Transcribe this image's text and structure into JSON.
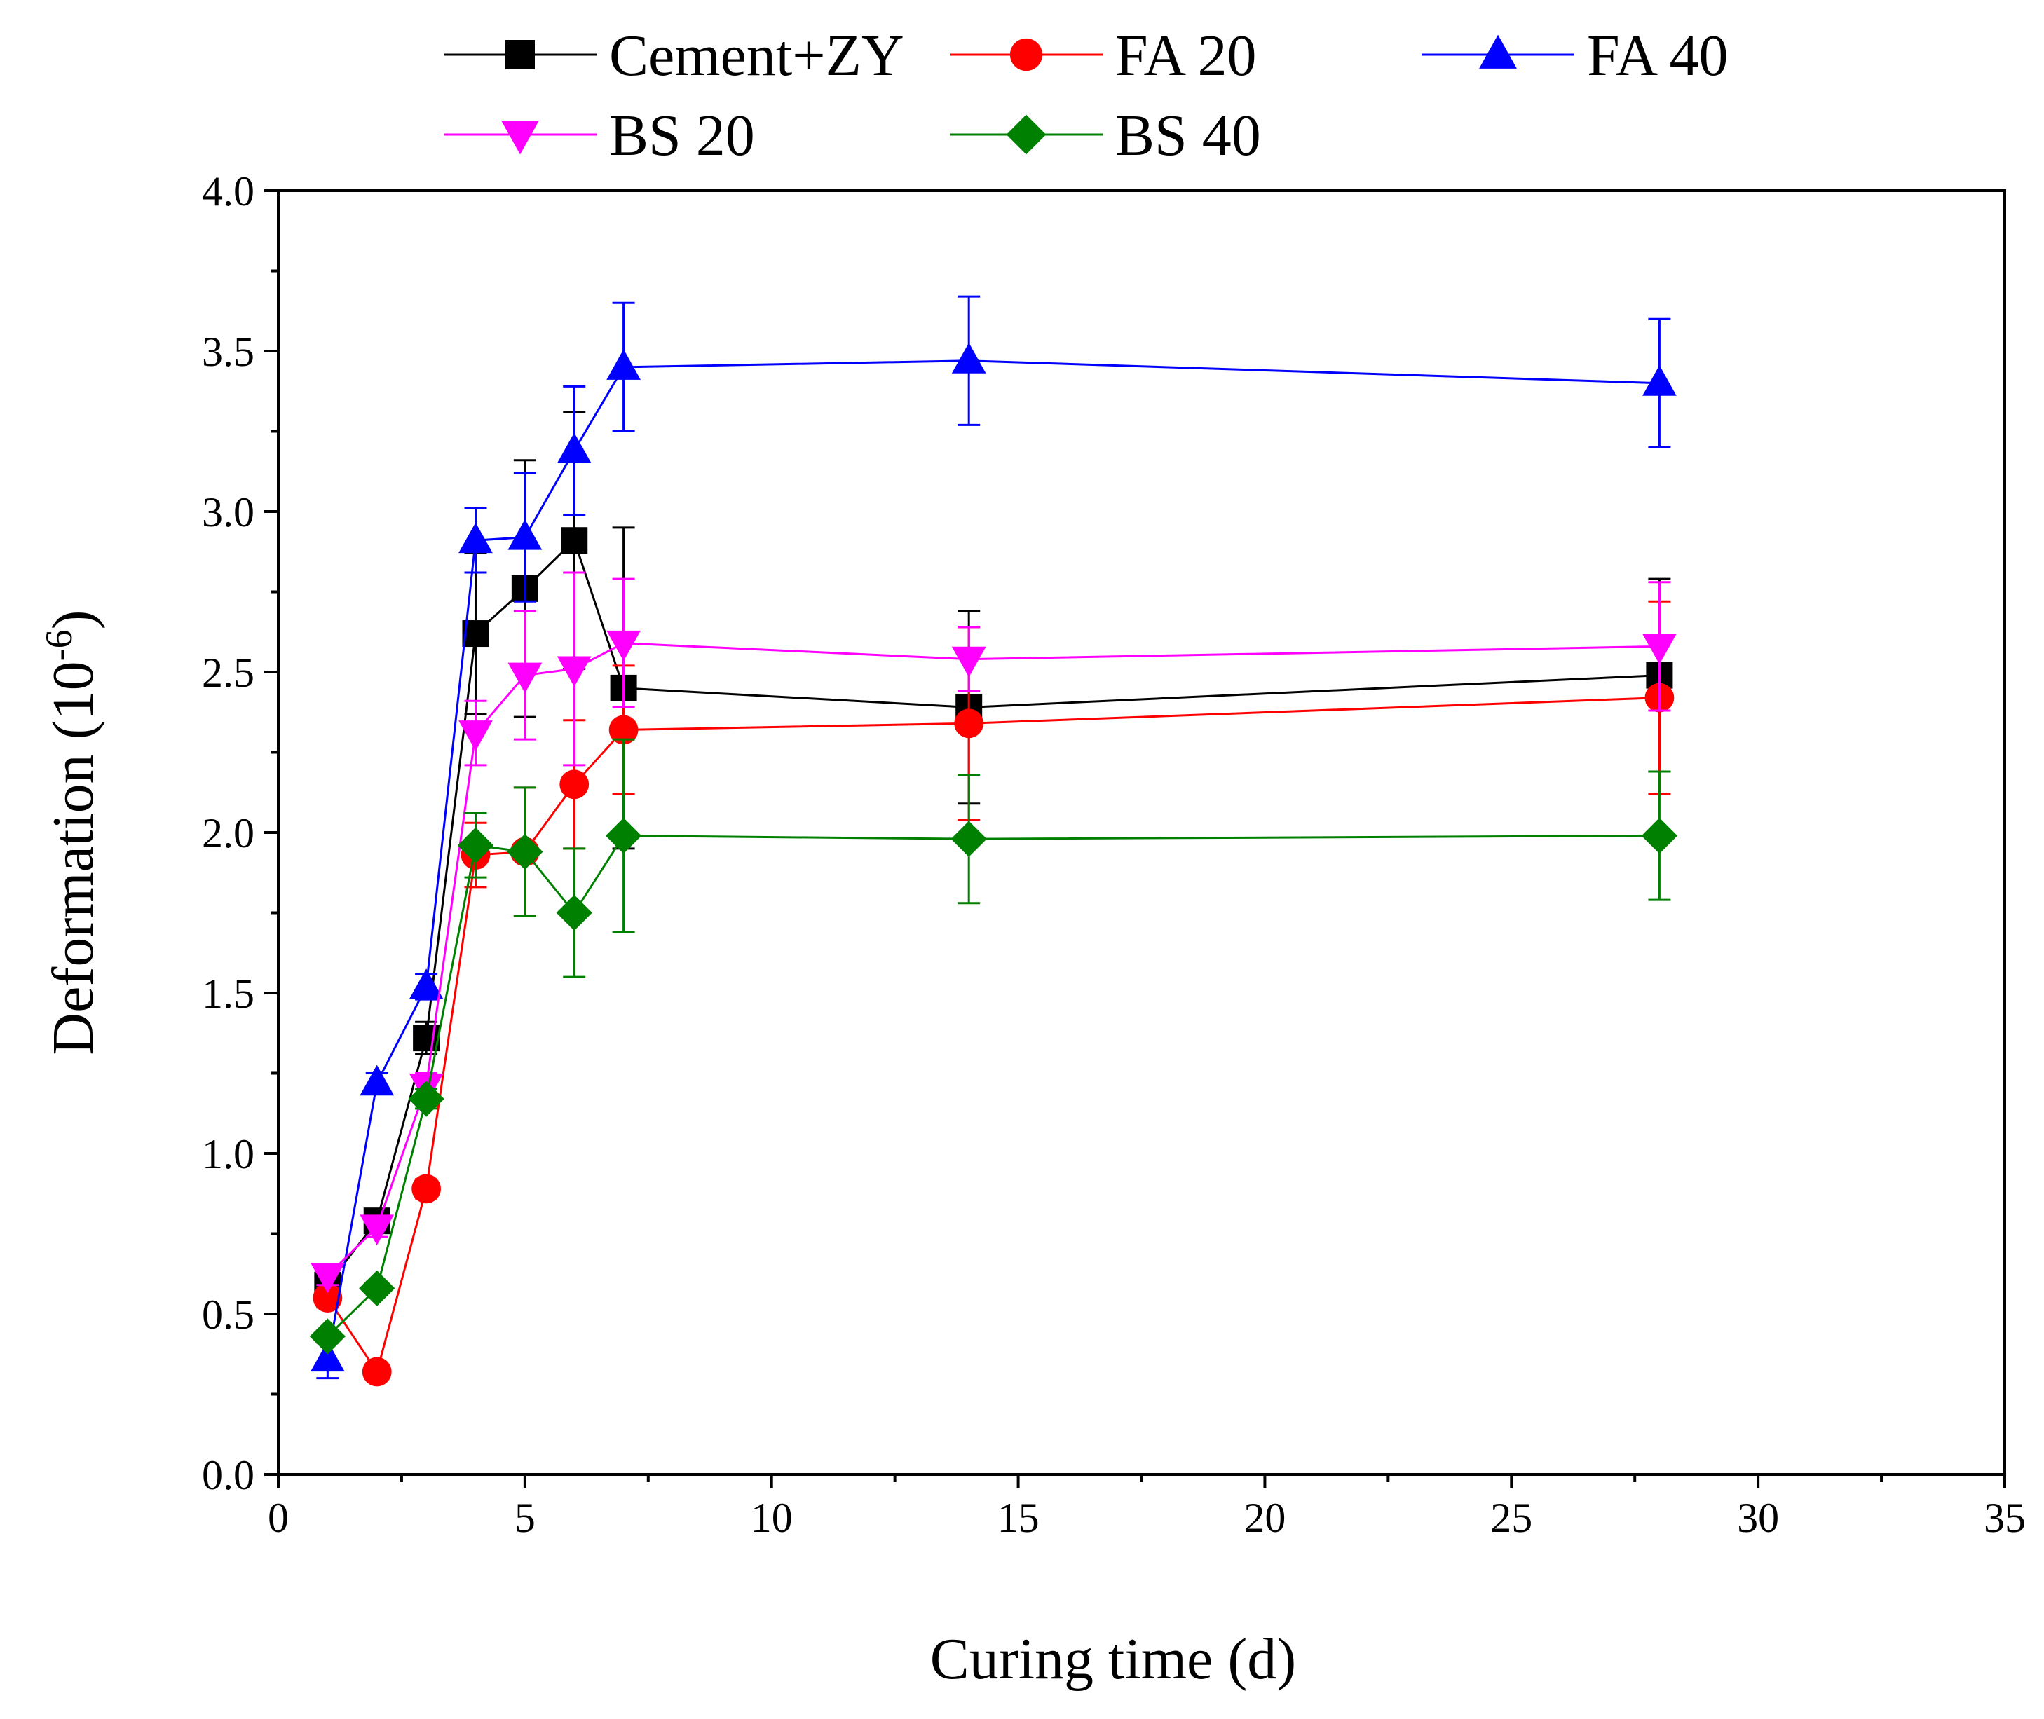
{
  "chart_data": {
    "type": "line",
    "title": "",
    "xlabel": "Curing time (d)",
    "ylabel": "Deformation (10",
    "ylabel_exponent": "-6",
    "ylabel_close": ")",
    "xlim": [
      0,
      35
    ],
    "ylim": [
      0.0,
      4.0
    ],
    "x_ticks": [
      0,
      5,
      10,
      15,
      20,
      25,
      30,
      35
    ],
    "x_tick_labels": [
      "0",
      "5",
      "10",
      "15",
      "20",
      "25",
      "30",
      "35"
    ],
    "y_ticks": [
      0.0,
      0.5,
      1.0,
      1.5,
      2.0,
      2.5,
      3.0,
      3.5,
      4.0
    ],
    "y_tick_labels": [
      "0.0",
      "0.5",
      "1.0",
      "1.5",
      "2.0",
      "2.5",
      "3.0",
      "3.5",
      "4.0"
    ],
    "grid": false,
    "legend_position": "top",
    "x": [
      1,
      2,
      3,
      4,
      5,
      6,
      7,
      14,
      28
    ],
    "series": [
      {
        "name": "Cement+ZY",
        "color": "#000000",
        "marker": "square",
        "values": [
          0.59,
          0.79,
          1.36,
          2.62,
          2.76,
          2.91,
          2.45,
          2.39,
          2.49
        ],
        "errors": [
          0.03,
          0.03,
          0.05,
          0.25,
          0.4,
          0.4,
          0.5,
          0.3,
          0.3
        ]
      },
      {
        "name": "FA 20",
        "color": "#ff0000",
        "marker": "circle",
        "values": [
          0.55,
          0.32,
          0.89,
          1.93,
          1.94,
          2.15,
          2.32,
          2.34,
          2.42
        ],
        "errors": [
          0.03,
          0.02,
          0.03,
          0.1,
          0.2,
          0.2,
          0.2,
          0.3,
          0.3
        ]
      },
      {
        "name": "FA 40",
        "color": "#0000ff",
        "marker": "triangle-up",
        "values": [
          0.36,
          1.22,
          1.52,
          2.91,
          2.92,
          3.19,
          3.45,
          3.47,
          3.4
        ],
        "errors": [
          0.06,
          0.03,
          0.04,
          0.1,
          0.2,
          0.2,
          0.2,
          0.2,
          0.2
        ]
      },
      {
        "name": "BS 20",
        "color": "#ff00ff",
        "marker": "triangle-down",
        "values": [
          0.62,
          0.77,
          1.21,
          2.31,
          2.49,
          2.51,
          2.59,
          2.54,
          2.58
        ],
        "errors": [
          0.03,
          0.03,
          0.04,
          0.1,
          0.2,
          0.3,
          0.2,
          0.1,
          0.2
        ]
      },
      {
        "name": "BS 40",
        "color": "#008000",
        "marker": "diamond",
        "values": [
          0.43,
          0.58,
          1.17,
          1.96,
          1.94,
          1.75,
          1.99,
          1.98,
          1.99
        ],
        "errors": [
          0.02,
          0.02,
          0.03,
          0.1,
          0.2,
          0.2,
          0.3,
          0.2,
          0.2
        ]
      }
    ]
  }
}
